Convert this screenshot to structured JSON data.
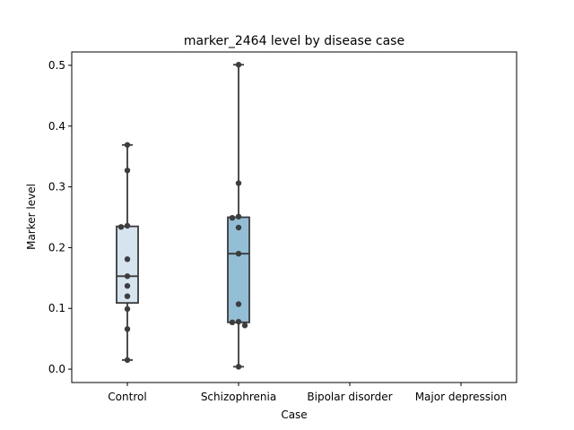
{
  "chart_data": {
    "type": "box",
    "title": "marker_2464 level by disease case",
    "xlabel": "Case",
    "ylabel": "Marker level",
    "ylim": [
      -0.022,
      0.522
    ],
    "yticks": [
      0.0,
      0.1,
      0.2,
      0.3,
      0.4,
      0.5
    ],
    "ytick_labels": [
      "0.0",
      "0.1",
      "0.2",
      "0.3",
      "0.4",
      "0.5"
    ],
    "categories": [
      "Control",
      "Schizophrenia",
      "Bipolar disorder",
      "Major depression"
    ],
    "grid": false,
    "legend": "none",
    "box_colors": [
      "#d6e4f0",
      "#93bfd6"
    ],
    "boxes": [
      {
        "category": "Control",
        "whisker_low": 0.015,
        "q1": 0.109,
        "median": 0.153,
        "q3": 0.235,
        "whisker_high": 0.369,
        "points": [
          0.369,
          0.327,
          0.236,
          0.234,
          0.181,
          0.153,
          0.137,
          0.12,
          0.099,
          0.066,
          0.015
        ]
      },
      {
        "category": "Schizophrenia",
        "whisker_low": 0.004,
        "q1": 0.077,
        "median": 0.19,
        "q3": 0.25,
        "whisker_high": 0.501,
        "points": [
          0.501,
          0.306,
          0.251,
          0.249,
          0.233,
          0.19,
          0.107,
          0.078,
          0.077,
          0.072,
          0.004
        ]
      },
      {
        "category": "Bipolar disorder",
        "points": []
      },
      {
        "category": "Major depression",
        "points": []
      }
    ]
  }
}
